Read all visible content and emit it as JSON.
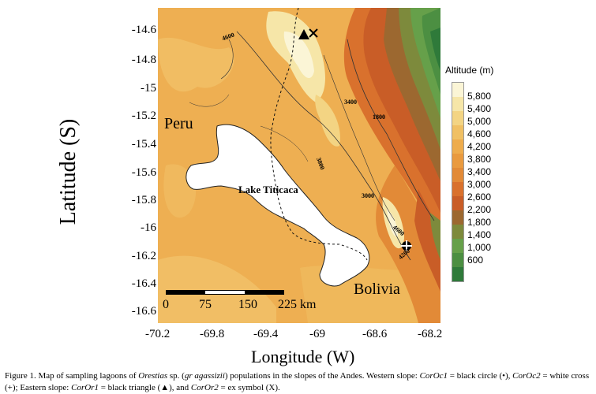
{
  "axes": {
    "ylabel": "Latitude (S)",
    "xlabel": "Longitude (W)",
    "y_ticks": [
      "-14.6",
      "-14.8",
      "-15",
      "-15.2",
      "-15.4",
      "-15.6",
      "-15.8",
      "-16",
      "-16.2",
      "-16.4",
      "-16.6"
    ],
    "x_ticks": [
      "-70.2",
      "-69.8",
      "-69.4",
      "-69",
      "-68.6",
      "-68.2"
    ]
  },
  "legend": {
    "title": "Altitude (m)",
    "levels": [
      "5,800",
      "5,400",
      "5,000",
      "4,600",
      "4,200",
      "3,800",
      "3,400",
      "3,000",
      "2,600",
      "2,200",
      "1,800",
      "1,400",
      "1,000",
      "600"
    ],
    "colors": [
      "#fbf5d6",
      "#f6e6a8",
      "#f3d483",
      "#f0c064",
      "#eeac4d",
      "#e99a3f",
      "#e28a37",
      "#d9712d",
      "#c95d27",
      "#9c6830",
      "#7d8a3c",
      "#66a04a",
      "#4c8f42",
      "#2f7a3a"
    ]
  },
  "map_labels": {
    "peru": "Peru",
    "bolivia": "Bolivia",
    "lake": "Lake Titicaca",
    "contours": [
      "4600",
      "3400",
      "1800",
      "3800",
      "3000",
      "4600",
      "4200"
    ]
  },
  "scale_bar": {
    "labels": [
      "0",
      "75",
      "150",
      "225 km"
    ]
  },
  "caption": {
    "p1": "Figure 1. Map of sampling lagoons of ",
    "genus": "Orestias",
    "p2": " sp. (",
    "gr": "gr agassizii",
    "p3": ") populations in the slopes of the Andes. Western slope: ",
    "s1": "CorOc1",
    "p4": " = black circle (•), ",
    "s2": "CorOc2",
    "p5": " = white cross (+); Eastern slope: ",
    "s3": "CorOr1",
    "p6": " = black triangle (▲), and ",
    "s4": "CorOr2",
    "p7": " = ex symbol (X)."
  }
}
